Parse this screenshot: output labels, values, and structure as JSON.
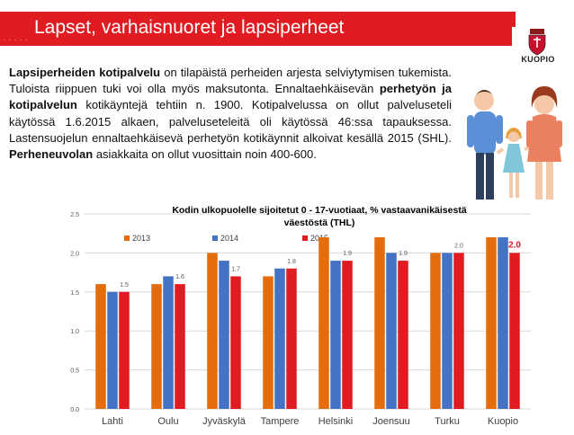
{
  "header": {
    "title": "Lapset, varhaisnuoret ja lapsiperheet",
    "shadow_text": "· · · · ·",
    "logo_text": "KUOPIO"
  },
  "body": {
    "segments": [
      {
        "text": "Lapsiperheiden kotipalvelu",
        "bold": true
      },
      {
        "text": " on tilapäistä perheiden arjesta selviytymisen tukemista. Tuloista riippuen tuki voi olla myös maksutonta. Ennaltaehkäisevän ",
        "bold": false
      },
      {
        "text": "perhetyön ja kotipalvelun",
        "bold": true
      },
      {
        "text": " kotikäyntejä tehtiin n. 1900. Kotipalvelussa on ollut palveluseteli käytössä 1.6.2015 alkaen, palveluseteleitä oli käytössä 46:ssa tapauksessa. Lastensuojelun ennaltaehkäisevä perhetyön kotikäynnit alkoivat kesällä 2015 (SHL). ",
        "bold": false
      },
      {
        "text": "Perheneuvolan",
        "bold": true
      },
      {
        "text": " asiakkaita on ollut vuosittain noin 400-600.",
        "bold": false
      }
    ]
  },
  "chart_data": {
    "type": "bar",
    "title": "Kodin ulkopuolelle sijoitetut 0 - 17-vuotiaat, % vastaavanikäisestä väestöstä (THL)",
    "title_lines": [
      "Kodin ulkopuolelle sijoitetut 0 - 17-vuotiaat, % vastaavanikäisestä",
      "väestöstä (THL)"
    ],
    "categories": [
      "Lahti",
      "Oulu",
      "Jyväskylä",
      "Tampere",
      "Helsinki",
      "Joensuu",
      "Turku",
      "Kuopio"
    ],
    "series": [
      {
        "name": "2013",
        "values": [
          1.6,
          1.6,
          2.0,
          1.7,
          2.2,
          2.2,
          2.0,
          2.2
        ],
        "color": "#e46c0a"
      },
      {
        "name": "2014",
        "values": [
          1.5,
          1.7,
          1.9,
          1.8,
          1.9,
          2.0,
          2.0,
          2.2
        ],
        "color": "#4472c4"
      },
      {
        "name": "2015",
        "values": [
          1.5,
          1.6,
          1.7,
          1.8,
          1.9,
          1.9,
          2.0,
          2.0
        ],
        "color": "#e01b22"
      }
    ],
    "data_labels": [
      {
        "category": "Lahti",
        "series": "2015",
        "text": "1.5"
      },
      {
        "category": "Oulu",
        "series": "2015",
        "text": "1.6"
      },
      {
        "category": "Jyväskylä",
        "series": "2015",
        "text": "1.7"
      },
      {
        "category": "Tampere",
        "series": "2015",
        "text": "1.8"
      },
      {
        "category": "Helsinki",
        "series": "2015",
        "text": "1.9"
      },
      {
        "category": "Joensuu",
        "series": "2015",
        "text": "1.9"
      },
      {
        "category": "Turku",
        "series": "2015",
        "text": "2.0"
      },
      {
        "category": "Kuopio",
        "series": "2015",
        "text": "2.0",
        "highlight": true
      }
    ],
    "ylim": [
      0,
      2.5
    ],
    "yticks": [
      "0.0",
      "0.5",
      "1.0",
      "1.5",
      "2.0",
      "2.5"
    ],
    "grid": true,
    "legend_position": "top",
    "highlight_color": "#e01b22"
  }
}
